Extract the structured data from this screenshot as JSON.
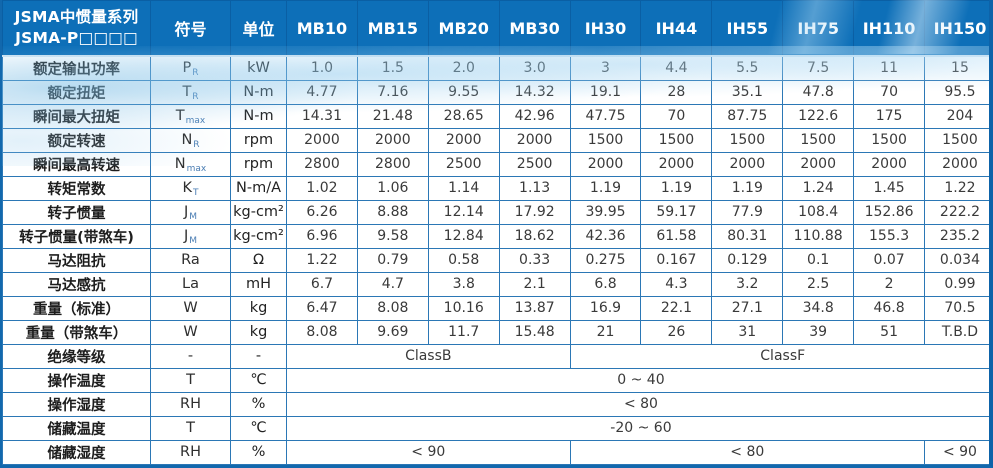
{
  "header": {
    "title_line1": "JSMA中惯量系列",
    "title_line2": "JSMA-P□□□□",
    "symbol_col": "符号",
    "unit_col": "单位",
    "models": [
      "MB10",
      "MB15",
      "MB20",
      "MB30",
      "IH30",
      "IH44",
      "IH55",
      "IH75",
      "IH110",
      "IH150"
    ]
  },
  "colors": {
    "header_bg": "#0d6fb8",
    "grid_line": "#2b77b5",
    "outer_border": "#1268ad",
    "wave_light_blue": "#9ecfeb",
    "subscript_blue": "#4a7db3",
    "text_dark": "#3a3a3a"
  },
  "table": {
    "rows": [
      {
        "label": "额定输出功率",
        "sym": "P",
        "sub": "R",
        "unit": "kW",
        "cells": [
          "1.0",
          "1.5",
          "2.0",
          "3.0",
          "3",
          "4.4",
          "5.5",
          "7.5",
          "11",
          "15"
        ]
      },
      {
        "label": "额定扭矩",
        "sym": "T",
        "sub": "R",
        "unit": "N-m",
        "cells": [
          "4.77",
          "7.16",
          "9.55",
          "14.32",
          "19.1",
          "28",
          "35.1",
          "47.8",
          "70",
          "95.5"
        ]
      },
      {
        "label": "瞬间最大扭矩",
        "sym": "T",
        "sub": "max",
        "unit": "N-m",
        "cells": [
          "14.31",
          "21.48",
          "28.65",
          "42.96",
          "47.75",
          "70",
          "87.75",
          "122.6",
          "175",
          "204"
        ]
      },
      {
        "label": "额定转速",
        "sym": "N",
        "sub": "R",
        "unit": "rpm",
        "cells": [
          "2000",
          "2000",
          "2000",
          "2000",
          "1500",
          "1500",
          "1500",
          "1500",
          "1500",
          "1500"
        ]
      },
      {
        "label": "瞬间最高转速",
        "sym": "N",
        "sub": "max",
        "unit": "rpm",
        "cells": [
          "2800",
          "2800",
          "2500",
          "2500",
          "2000",
          "2000",
          "2000",
          "2000",
          "2000",
          "2000"
        ]
      },
      {
        "label": "转矩常数",
        "sym": "K",
        "sub": "T",
        "unit": "N-m/A",
        "cells": [
          "1.02",
          "1.06",
          "1.14",
          "1.13",
          "1.19",
          "1.19",
          "1.19",
          "1.24",
          "1.45",
          "1.22"
        ]
      },
      {
        "label": "转子惯量",
        "sym": "J",
        "sub": "M",
        "unit": "kg-cm²",
        "cells": [
          "6.26",
          "8.88",
          "12.14",
          "17.92",
          "39.95",
          "59.17",
          "77.9",
          "108.4",
          "152.86",
          "222.2"
        ]
      },
      {
        "label": "转子惯量(带煞车)",
        "sym": "J",
        "sub": "M",
        "unit": "kg-cm²",
        "cells": [
          "6.96",
          "9.58",
          "12.84",
          "18.62",
          "42.36",
          "61.58",
          "80.31",
          "110.88",
          "155.3",
          "235.2"
        ]
      },
      {
        "label": "马达阻抗",
        "sym": "Ra",
        "sub": "",
        "unit": "Ω",
        "cells": [
          "1.22",
          "0.79",
          "0.58",
          "0.33",
          "0.275",
          "0.167",
          "0.129",
          "0.1",
          "0.07",
          "0.034"
        ]
      },
      {
        "label": "马达感抗",
        "sym": "La",
        "sub": "",
        "unit": "mH",
        "cells": [
          "6.7",
          "4.7",
          "3.8",
          "2.1",
          "6.8",
          "4.3",
          "3.2",
          "2.5",
          "2",
          "0.99"
        ]
      },
      {
        "label": "重量（标准）",
        "sym": "W",
        "sub": "",
        "unit": "kg",
        "cells": [
          "6.47",
          "8.08",
          "10.16",
          "13.87",
          "16.9",
          "22.1",
          "27.1",
          "34.8",
          "46.8",
          "70.5"
        ]
      },
      {
        "label": "重量（带煞车）",
        "sym": "W",
        "sub": "",
        "unit": "kg",
        "cells": [
          "8.08",
          "9.69",
          "11.7",
          "15.48",
          "21",
          "26",
          "31",
          "39",
          "51",
          "T.B.D"
        ]
      },
      {
        "label": "绝缘等级",
        "sym": "-",
        "sub": "",
        "unit": "-",
        "cells": [
          {
            "text": "ClassB",
            "span": 4
          },
          {
            "text": "ClassF",
            "span": 6
          }
        ]
      },
      {
        "label": "操作温度",
        "sym": "T",
        "sub": "",
        "unit": "℃",
        "cells": [
          {
            "text": "0 ~ 40",
            "span": 10
          }
        ]
      },
      {
        "label": "操作湿度",
        "sym": "RH",
        "sub": "",
        "unit": "%",
        "cells": [
          {
            "text": "< 80",
            "span": 10
          }
        ]
      },
      {
        "label": "储藏温度",
        "sym": "T",
        "sub": "",
        "unit": "℃",
        "cells": [
          {
            "text": "-20 ~ 60",
            "span": 10
          }
        ]
      },
      {
        "label": "储藏湿度",
        "sym": "RH",
        "sub": "",
        "unit": "%",
        "cells": [
          {
            "text": "< 90",
            "span": 4
          },
          {
            "text": "< 80",
            "span": 5
          },
          {
            "text": "< 90",
            "span": 1
          }
        ]
      }
    ]
  }
}
